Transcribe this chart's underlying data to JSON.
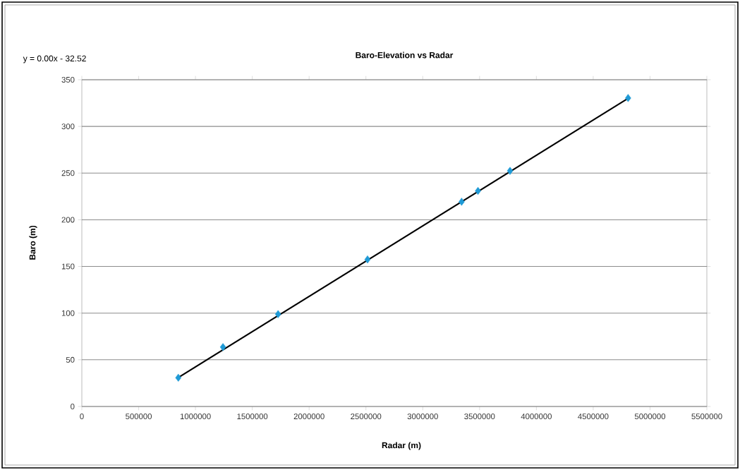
{
  "chart_data": {
    "type": "scatter",
    "title": "Baro-Elevation vs Radar",
    "xlabel": "Radar (m)",
    "ylabel": "Baro (m)",
    "annotations": [
      "y = 0.00x - 32.52"
    ],
    "x": [
      849000,
      1242000,
      1727000,
      2514000,
      3342000,
      3486000,
      3768000,
      4807000
    ],
    "series": [
      {
        "color": "#1f9ad6",
        "marker": "diamond",
        "values": [
          30.8,
          63.6,
          98.9,
          157.5,
          219.3,
          230.9,
          252.4,
          330.4
        ]
      },
      {
        "type": "line",
        "color": "#000000",
        "marker": "none",
        "line_style": "solid",
        "x": [
          849000,
          4807000
        ],
        "values": [
          31,
          330
        ]
      }
    ],
    "xlim": [
      0,
      5500000
    ],
    "xticks": [
      0,
      500000,
      1000000,
      1500000,
      2000000,
      2500000,
      3000000,
      3500000,
      4000000,
      4500000,
      5000000,
      5500000
    ],
    "ylim": [
      0,
      350
    ],
    "yticks": [
      0,
      50,
      100,
      150,
      200,
      250,
      300,
      350
    ],
    "grid": "y",
    "legend": false
  }
}
